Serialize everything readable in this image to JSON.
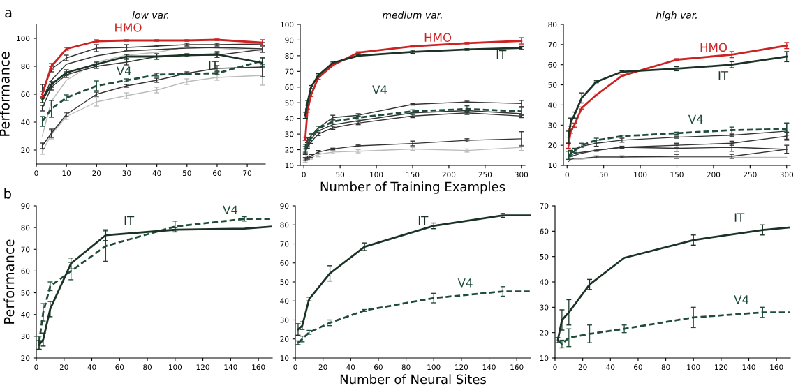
{
  "chart_data": [
    {
      "type": "line",
      "title": "low var.",
      "ylabel": "Performance",
      "x": [
        2,
        5,
        10,
        20,
        30,
        40,
        50,
        60,
        75
      ],
      "xlim": [
        0,
        76
      ],
      "xticks": [
        0,
        10,
        20,
        30,
        40,
        50,
        60,
        70
      ],
      "ylim": [
        10,
        110
      ],
      "yticks": [
        20,
        40,
        60,
        80,
        100
      ],
      "grid": false,
      "marker": "none",
      "series": [
        {
          "color": "#bbbbbb",
          "values": [
            30,
            55,
            70,
            83,
            88,
            90,
            94,
            93,
            91
          ]
        },
        {
          "color": "#bbbbbb",
          "values": [
            19,
            31,
            44,
            54.5,
            59,
            63,
            69,
            72,
            73.5
          ],
          "errors": [
            2,
            3,
            2,
            3,
            2,
            2,
            2,
            2,
            7
          ]
        },
        {
          "color": "#333333",
          "values": [
            23,
            32,
            45.5,
            60,
            66,
            70,
            75,
            78.5,
            79.5
          ],
          "errors": [
            2,
            3,
            1.5,
            1.5,
            1,
            1.5,
            1,
            2,
            7
          ]
        },
        {
          "color": "#333333",
          "values": [
            50,
            65,
            74,
            80,
            83,
            87,
            88,
            88,
            92
          ],
          "errors": [
            2,
            2,
            2,
            1.5,
            2,
            null,
            null,
            1.5,
            2
          ]
        },
        {
          "color": "#333333",
          "values": [
            57,
            70,
            81.5,
            87.5,
            91,
            92,
            93,
            93.5,
            92.5
          ]
        },
        {
          "color": "#333333",
          "values": [
            62,
            78,
            86,
            93,
            93.5,
            94.5,
            95.5,
            95.5,
            96
          ],
          "errors": [
            5,
            2,
            2,
            2.5,
            2,
            0.5,
            1,
            1,
            1
          ]
        },
        {
          "name": "V4",
          "color": "#1f4d3a",
          "line_style": "dashed",
          "values": [
            40.5,
            49.5,
            57.5,
            66,
            70,
            74,
            74.5,
            75,
            84
          ],
          "errors": [
            3.5,
            6,
            2,
            3.5,
            1,
            1,
            0.5,
            1,
            2.5
          ]
        },
        {
          "name": "IT",
          "color": "#1a3326",
          "values": [
            56,
            67,
            75.5,
            81.5,
            87,
            87,
            88,
            88.5,
            82.5
          ],
          "errors": [
            2,
            2,
            2,
            1.5,
            1.5,
            2,
            1,
            2,
            3
          ]
        },
        {
          "name": "HMO",
          "color": "#cc2222",
          "values": [
            60,
            80,
            92.5,
            98,
            98.5,
            98.5,
            98.5,
            99,
            97
          ],
          "errors": [
            2,
            2,
            1,
            1,
            0.5,
            0.5,
            0.5,
            0.5,
            2
          ]
        }
      ],
      "annotations": [
        "a"
      ]
    },
    {
      "type": "line",
      "title": "medium var.",
      "xlabel": "Number of Training Examples",
      "x": [
        2,
        5,
        10,
        20,
        40,
        75,
        150,
        225,
        300
      ],
      "xlim": [
        -5,
        305
      ],
      "xticks": [
        0,
        50,
        100,
        150,
        200,
        250,
        300
      ],
      "ylim": [
        10,
        100
      ],
      "yticks": [
        10,
        20,
        30,
        40,
        50,
        60,
        70,
        80,
        90,
        100
      ],
      "grid": false,
      "marker": "none",
      "series": [
        {
          "color": "#bbbbbb",
          "values": [
            13,
            14,
            15,
            17,
            18.5,
            19,
            20.5,
            19.5,
            21.5
          ],
          "errors": [
            1,
            1,
            1,
            1.5,
            1,
            1,
            1,
            1,
            2
          ]
        },
        {
          "color": "#333333",
          "values": [
            14,
            15,
            16,
            18.5,
            20.5,
            22.5,
            24,
            26,
            27
          ],
          "errors": [
            1,
            1,
            1,
            1,
            0.5,
            0.5,
            1.5,
            1,
            4.5
          ]
        },
        {
          "color": "#333333",
          "values": [
            18,
            22,
            25,
            30,
            34,
            37,
            41.5,
            43.5,
            41.5
          ],
          "errors": [
            1,
            1,
            1,
            1,
            1,
            1,
            1,
            1,
            1
          ]
        },
        {
          "color": "#333333",
          "values": [
            19,
            23,
            27,
            32,
            36,
            38.5,
            43.5,
            45,
            43
          ]
        },
        {
          "color": "#333333",
          "values": [
            22,
            26,
            29,
            34,
            40.5,
            42,
            49,
            50.5,
            49.5
          ],
          "errors": [
            1.5,
            1.5,
            1.5,
            null,
            1.5,
            1,
            0.5,
            0.5,
            2
          ]
        },
        {
          "name": "V4",
          "color": "#1f4d3a",
          "line_style": "dashed",
          "values": [
            20,
            24,
            28,
            33.5,
            38,
            40.5,
            44.5,
            46,
            44.5
          ],
          "errors": [
            2,
            2,
            2,
            1.5,
            1.5,
            1,
            1,
            2,
            2.5
          ]
        },
        {
          "name": "HMO",
          "color": "#cc2222",
          "values": [
            27,
            45,
            55,
            66,
            74,
            82,
            86,
            88,
            89.5
          ],
          "errors": [
            1,
            1,
            1,
            1,
            0.5,
            0.5,
            0.5,
            0.5,
            2
          ]
        },
        {
          "name": "IT",
          "color": "#1a3326",
          "values": [
            42,
            50,
            60,
            67.5,
            75.5,
            80,
            82.5,
            84,
            85
          ],
          "errors": [
            2,
            1.5,
            1,
            1,
            0.5,
            0.5,
            1,
            0.5,
            1
          ]
        }
      ]
    },
    {
      "type": "line",
      "title": "high var.",
      "x": [
        2,
        5,
        10,
        20,
        40,
        75,
        150,
        225,
        300
      ],
      "xlim": [
        -5,
        305
      ],
      "xticks": [
        0,
        50,
        100,
        150,
        200,
        250,
        300
      ],
      "ylim": [
        10,
        80
      ],
      "yticks": [
        10,
        20,
        30,
        40,
        50,
        60,
        70,
        80
      ],
      "grid": false,
      "marker": "none",
      "series": [
        {
          "color": "#bbbbbb",
          "values": [
            13,
            13,
            13,
            13,
            14,
            14,
            14,
            14,
            14
          ]
        },
        {
          "color": "#333333",
          "values": [
            12,
            13,
            13.5,
            13.5,
            14.2,
            14.2,
            14.5,
            14.5,
            18
          ],
          "errors": [
            null,
            null,
            null,
            null,
            0.5,
            0.5,
            1,
            1,
            2
          ]
        },
        {
          "color": "#333333",
          "values": [
            13,
            14.5,
            15,
            16,
            17.5,
            19,
            18.5,
            19,
            18
          ],
          "errors": [
            null,
            null,
            null,
            null,
            null,
            null,
            1.5,
            2,
            null
          ]
        },
        {
          "color": "#333333",
          "values": [
            14,
            15,
            16,
            16.5,
            17.5,
            19,
            20,
            21,
            24.5
          ],
          "errors": [
            null,
            null,
            null,
            null,
            0.5,
            0.5,
            1,
            1,
            2
          ]
        },
        {
          "color": "#333333",
          "values": [
            15,
            16,
            17,
            19.5,
            21,
            22.5,
            24,
            25,
            27
          ],
          "errors": [
            null,
            null,
            null,
            null,
            1.5,
            1,
            0.5,
            0.5,
            4
          ]
        },
        {
          "name": "V4",
          "color": "#1f4d3a",
          "line_style": "dashed",
          "values": [
            15,
            16,
            17.5,
            20,
            22.5,
            24.5,
            26,
            27.5,
            28
          ],
          "errors": [
            2,
            1.5,
            1,
            1,
            1,
            0.5,
            0.5,
            1.5,
            3
          ]
        },
        {
          "name": "HMO",
          "color": "#cc2222",
          "values": [
            20,
            27,
            30,
            38.5,
            45,
            54.5,
            62.5,
            65,
            69.5
          ],
          "errors": [
            1.5,
            1,
            1,
            0.5,
            0.5,
            0.5,
            0.5,
            1.5,
            1.5
          ]
        },
        {
          "name": "IT",
          "color": "#1a3326",
          "values": [
            24,
            31.5,
            35,
            43.5,
            51.5,
            56.5,
            58,
            60,
            64
          ],
          "errors": [
            3,
            2,
            1.5,
            2.5,
            0.5,
            0.5,
            1,
            1.5,
            2.5
          ]
        }
      ]
    },
    {
      "type": "line",
      "ylabel": "Performance",
      "x": [
        2,
        5,
        10,
        25,
        50,
        100,
        150,
        170
      ],
      "xlim": [
        0,
        170
      ],
      "xticks": [
        0,
        20,
        40,
        60,
        80,
        100,
        120,
        140,
        160
      ],
      "ylim": [
        20,
        90
      ],
      "yticks": [
        20,
        30,
        40,
        50,
        60,
        70,
        80,
        90
      ],
      "grid": false,
      "marker": "none",
      "series": [
        {
          "name": "V4",
          "color": "#1f4d3a",
          "line_style": "dashed",
          "values": [
            27,
            41,
            53,
            60,
            71.5,
            80.5,
            84,
            84
          ],
          "errors": [
            3,
            4,
            2,
            4,
            7,
            2.5,
            1,
            null
          ]
        },
        {
          "name": "IT",
          "color": "#1a3326",
          "values": [
            26,
            28.5,
            42.5,
            63.5,
            76.5,
            79,
            79.5,
            80.5
          ],
          "errors": [
            2,
            3,
            3.5,
            2.5,
            2.5,
            1,
            null,
            null
          ]
        }
      ],
      "annotations": [
        "b"
      ]
    },
    {
      "type": "line",
      "xlabel": "Number of Neural Sites",
      "x": [
        2,
        5,
        10,
        25,
        50,
        100,
        150,
        170
      ],
      "xlim": [
        0,
        170
      ],
      "xticks": [
        0,
        20,
        40,
        60,
        80,
        100,
        120,
        140,
        160
      ],
      "ylim": [
        10,
        90
      ],
      "yticks": [
        10,
        20,
        30,
        40,
        50,
        60,
        70,
        80,
        90
      ],
      "grid": false,
      "marker": "none",
      "series": [
        {
          "name": "V4",
          "color": "#1f4d3a",
          "line_style": "dashed",
          "values": [
            18,
            20,
            23.5,
            28.5,
            35,
            41.5,
            45,
            45
          ],
          "errors": [
            1,
            1.5,
            1,
            1.5,
            0.5,
            2.5,
            2.5,
            null
          ]
        },
        {
          "name": "IT",
          "color": "#1a3326",
          "values": [
            25,
            27,
            41,
            54.5,
            68.5,
            79.5,
            85,
            85
          ],
          "errors": [
            3,
            2,
            1,
            4,
            2,
            1.5,
            1,
            null
          ]
        }
      ]
    },
    {
      "type": "line",
      "x": [
        2,
        5,
        10,
        25,
        50,
        100,
        150,
        170
      ],
      "xlim": [
        0,
        170
      ],
      "xticks": [
        0,
        20,
        40,
        60,
        80,
        100,
        120,
        140,
        160
      ],
      "ylim": [
        10,
        70
      ],
      "yticks": [
        10,
        20,
        30,
        40,
        50,
        60,
        70
      ],
      "grid": false,
      "marker": "none",
      "series": [
        {
          "name": "V4",
          "color": "#1f4d3a",
          "line_style": "dashed",
          "values": [
            17,
            15.5,
            18,
            19.5,
            21.5,
            26,
            28,
            28
          ],
          "errors": [
            null,
            1.5,
            3.5,
            3.5,
            1.5,
            4,
            2,
            null
          ]
        },
        {
          "name": "IT",
          "color": "#1a3326",
          "values": [
            17,
            25,
            28,
            39,
            49.5,
            56.5,
            60.5,
            61.5
          ],
          "errors": [
            1,
            4,
            5,
            2,
            null,
            2,
            2,
            null
          ]
        }
      ]
    }
  ]
}
